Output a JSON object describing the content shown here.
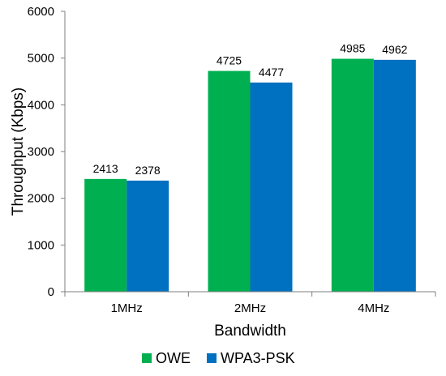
{
  "chart_data": {
    "type": "bar",
    "categories": [
      "1MHz",
      "2MHz",
      "4MHz"
    ],
    "series": [
      {
        "name": "OWE",
        "values": [
          2413,
          4725,
          4985
        ],
        "color": "#00B050"
      },
      {
        "name": "WPA3-PSK",
        "values": [
          2378,
          4477,
          4962
        ],
        "color": "#0070C0"
      }
    ],
    "xlabel": "Bandwidth",
    "ylabel": "Throughput (Kbps)",
    "ylim": [
      0,
      6000
    ],
    "yticks": [
      0,
      1000,
      2000,
      3000,
      4000,
      5000,
      6000
    ],
    "grid": false,
    "legend": "bottom"
  }
}
